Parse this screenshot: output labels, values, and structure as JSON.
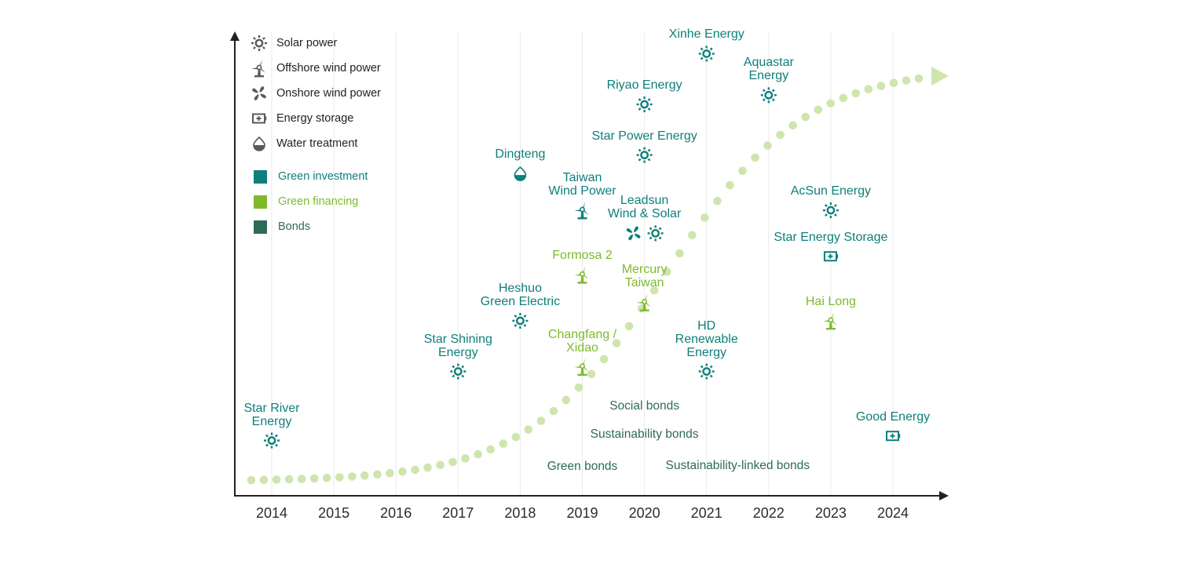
{
  "chart_data": {
    "type": "timeline",
    "title": "",
    "xlabel": "",
    "ylabel": "",
    "x_ticks": [
      "2014",
      "2015",
      "2016",
      "2017",
      "2018",
      "2019",
      "2020",
      "2021",
      "2022",
      "2023",
      "2024"
    ],
    "grid": "vertical",
    "trend": "rising dotted S-curve with arrow pointing up-right",
    "colors": {
      "green_investment": "#0e7f7b",
      "green_financing": "#7dbb2c",
      "bonds": "#2f6b55",
      "trend": "#cfe5ae",
      "axis": "#231f20"
    },
    "legend": {
      "icons": [
        {
          "icon": "sun-icon",
          "label": "Solar power"
        },
        {
          "icon": "offshore-wind-icon",
          "label": "Offshore wind power"
        },
        {
          "icon": "onshore-wind-icon",
          "label": "Onshore wind power"
        },
        {
          "icon": "battery-icon",
          "label": "Energy storage"
        },
        {
          "icon": "water-drop-icon",
          "label": "Water treatment"
        }
      ],
      "categories": [
        {
          "label": "Green investment",
          "color": "#0e7f7b",
          "text_color": "#0e7f7b"
        },
        {
          "label": "Green financing",
          "color": "#7dbb2c",
          "text_color": "#7dbb2c"
        },
        {
          "label": "Bonds",
          "color": "#2f6b55",
          "text_color": "#2f6b55"
        }
      ]
    },
    "projects": [
      {
        "name": "Star River\nEnergy",
        "year": 2014,
        "category": "investment",
        "icons": [
          "sun"
        ],
        "level": 0.12
      },
      {
        "name": "Star Shining\nEnergy",
        "year": 2017,
        "category": "investment",
        "icons": [
          "sun"
        ],
        "level": 0.27
      },
      {
        "name": "Heshuo\nGreen Electric",
        "year": 2018,
        "category": "investment",
        "icons": [
          "sun"
        ],
        "level": 0.38
      },
      {
        "name": "Dingteng",
        "year": 2018,
        "category": "investment",
        "icons": [
          "water"
        ],
        "level": 0.7
      },
      {
        "name": "Changfang /\nXidao",
        "year": 2019,
        "category": "financing",
        "icons": [
          "offshore"
        ],
        "level": 0.28
      },
      {
        "name": "Formosa 2",
        "year": 2019,
        "category": "financing",
        "icons": [
          "offshore"
        ],
        "level": 0.48
      },
      {
        "name": "Taiwan\nWind Power",
        "year": 2019,
        "category": "investment",
        "icons": [
          "offshore"
        ],
        "level": 0.62
      },
      {
        "name": "Mercury\nTaiwan",
        "year": 2020,
        "category": "financing",
        "icons": [
          "offshore"
        ],
        "level": 0.42
      },
      {
        "name": "Leadsun\nWind & Solar",
        "year": 2020,
        "category": "investment",
        "icons": [
          "onshore",
          "sun"
        ],
        "level": 0.57
      },
      {
        "name": "Star Power Energy",
        "year": 2020,
        "category": "investment",
        "icons": [
          "sun"
        ],
        "level": 0.74
      },
      {
        "name": "Riyao Energy",
        "year": 2020,
        "category": "investment",
        "icons": [
          "sun"
        ],
        "level": 0.85
      },
      {
        "name": "HD\nRenewable\nEnergy",
        "year": 2021,
        "category": "investment",
        "icons": [
          "sun"
        ],
        "level": 0.27
      },
      {
        "name": "Xinhe Energy",
        "year": 2021,
        "category": "investment",
        "icons": [
          "sun"
        ],
        "level": 0.96
      },
      {
        "name": "Aquastar\nEnergy",
        "year": 2022,
        "category": "investment",
        "icons": [
          "sun"
        ],
        "level": 0.87
      },
      {
        "name": "Hai Long",
        "year": 2023,
        "category": "financing",
        "icons": [
          "offshore"
        ],
        "level": 0.38
      },
      {
        "name": "Star Energy Storage",
        "year": 2023,
        "category": "investment",
        "icons": [
          "battery"
        ],
        "level": 0.52
      },
      {
        "name": "AcSun Energy",
        "year": 2023,
        "category": "investment",
        "icons": [
          "sun"
        ],
        "level": 0.62
      },
      {
        "name": "Good Energy",
        "year": 2024,
        "category": "investment",
        "icons": [
          "battery"
        ],
        "level": 0.13
      }
    ],
    "bonds": [
      {
        "label": "Green bonds",
        "year": 2019
      },
      {
        "label": "Social bonds",
        "year": 2020
      },
      {
        "label": "Sustainability bonds",
        "year": 2020
      },
      {
        "label": "Sustainability-linked bonds",
        "year": 2021.5
      }
    ]
  }
}
